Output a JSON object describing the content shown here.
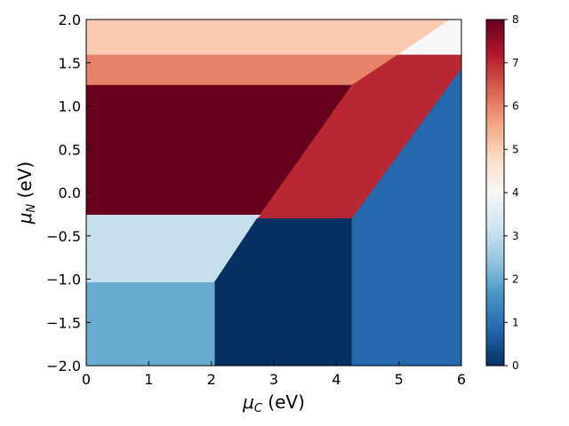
{
  "chart_data": {
    "type": "heatmap",
    "title": "",
    "xlabel": {
      "symbol": "μ",
      "sub": "C",
      "unit": " (eV)"
    },
    "ylabel": {
      "symbol": "μ",
      "sub": "N",
      "unit": " (eV)"
    },
    "xlim": [
      0,
      6
    ],
    "ylim": [
      -2,
      2
    ],
    "x_ticks": [
      "0",
      "1",
      "2",
      "3",
      "4",
      "5",
      "6"
    ],
    "x_tick_values": [
      0,
      1,
      2,
      3,
      4,
      5,
      6
    ],
    "y_ticks": [
      "−2.0",
      "−1.5",
      "−1.0",
      "−0.5",
      "0.0",
      "0.5",
      "1.0",
      "1.5",
      "2.0"
    ],
    "y_tick_values": [
      -2.0,
      -1.5,
      -1.0,
      -0.5,
      0.0,
      0.5,
      1.0,
      1.5,
      2.0
    ],
    "grid": false,
    "colormap": "RdBu_r",
    "colorbar": {
      "range": [
        0,
        8
      ],
      "ticks": [
        "0",
        "1",
        "2",
        "3",
        "4",
        "5",
        "6",
        "7",
        "8"
      ],
      "tick_values": [
        0,
        1,
        2,
        3,
        4,
        5,
        6,
        7,
        8
      ]
    },
    "regions": [
      {
        "value": 5,
        "color": "#f9cbb2",
        "polygon": [
          [
            0,
            2.0
          ],
          [
            5.82,
            2.0
          ],
          [
            4.98,
            1.59
          ],
          [
            0,
            1.59
          ]
        ]
      },
      {
        "value": 4,
        "color": "#f7f7f7",
        "polygon": [
          [
            5.82,
            2.0
          ],
          [
            6.0,
            2.0
          ],
          [
            6.0,
            1.59
          ],
          [
            4.98,
            1.59
          ]
        ]
      },
      {
        "value": 6,
        "color": "#e58268",
        "polygon": [
          [
            0,
            1.59
          ],
          [
            4.98,
            1.59
          ],
          [
            4.25,
            1.24
          ],
          [
            0,
            1.24
          ]
        ]
      },
      {
        "value": 8,
        "color": "#67001f",
        "polygon": [
          [
            0,
            1.24
          ],
          [
            4.25,
            1.24
          ],
          [
            2.78,
            -0.26
          ],
          [
            0,
            -0.26
          ]
        ]
      },
      {
        "value": 7,
        "color": "#b92732",
        "polygon": [
          [
            4.98,
            1.59
          ],
          [
            6.0,
            1.59
          ],
          [
            6.0,
            1.43
          ],
          [
            4.25,
            -0.3
          ],
          [
            2.73,
            -0.3
          ],
          [
            2.78,
            -0.26
          ],
          [
            4.25,
            1.24
          ]
        ]
      },
      {
        "value": 3,
        "color": "#c6dfec",
        "polygon": [
          [
            0,
            -0.26
          ],
          [
            2.78,
            -0.26
          ],
          [
            2.73,
            -0.3
          ],
          [
            2.05,
            -1.04
          ],
          [
            0,
            -1.04
          ]
        ]
      },
      {
        "value": 0,
        "color": "#053061",
        "polygon": [
          [
            2.73,
            -0.3
          ],
          [
            4.25,
            -0.3
          ],
          [
            4.25,
            -2.0
          ],
          [
            2.05,
            -2.0
          ],
          [
            2.05,
            -1.04
          ]
        ]
      },
      {
        "value": 1,
        "color": "#2469ae",
        "polygon": [
          [
            4.25,
            -0.3
          ],
          [
            6.0,
            1.43
          ],
          [
            6.0,
            -2.0
          ],
          [
            4.25,
            -2.0
          ]
        ]
      },
      {
        "value": 2,
        "color": "#68abd1",
        "polygon": [
          [
            0,
            -1.04
          ],
          [
            2.05,
            -1.04
          ],
          [
            2.05,
            -2.0
          ],
          [
            0,
            -2.0
          ]
        ]
      }
    ]
  }
}
